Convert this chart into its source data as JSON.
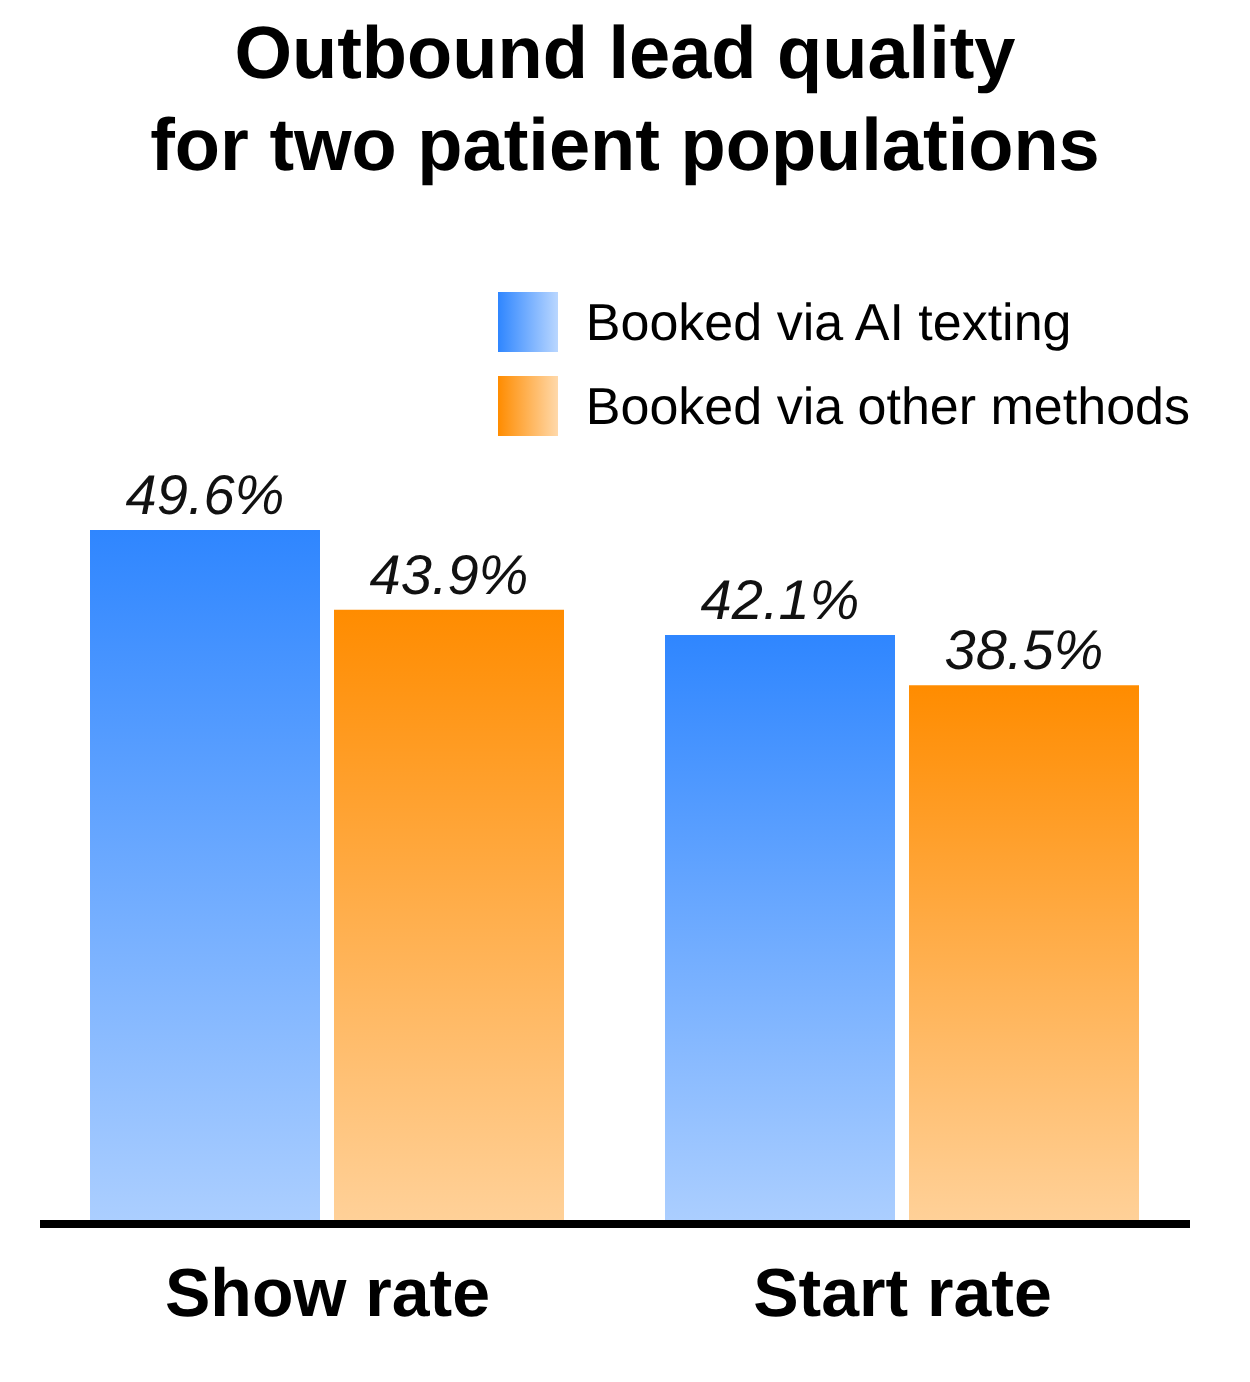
{
  "chart_data": {
    "type": "bar",
    "title": "Outbound lead quality\nfor two patient populations",
    "categories": [
      "Show rate",
      "Start rate"
    ],
    "series": [
      {
        "name": "Booked via AI texting",
        "color": "#2f86ff",
        "values": [
          49.6,
          42.1
        ],
        "value_labels": [
          "49.6%",
          "42.1%"
        ]
      },
      {
        "name": "Booked via other methods",
        "color": "#ff8c00",
        "values": [
          43.9,
          38.5
        ],
        "value_labels": [
          "43.9%",
          "38.5%"
        ]
      }
    ],
    "legend": "top right",
    "grid": false
  }
}
